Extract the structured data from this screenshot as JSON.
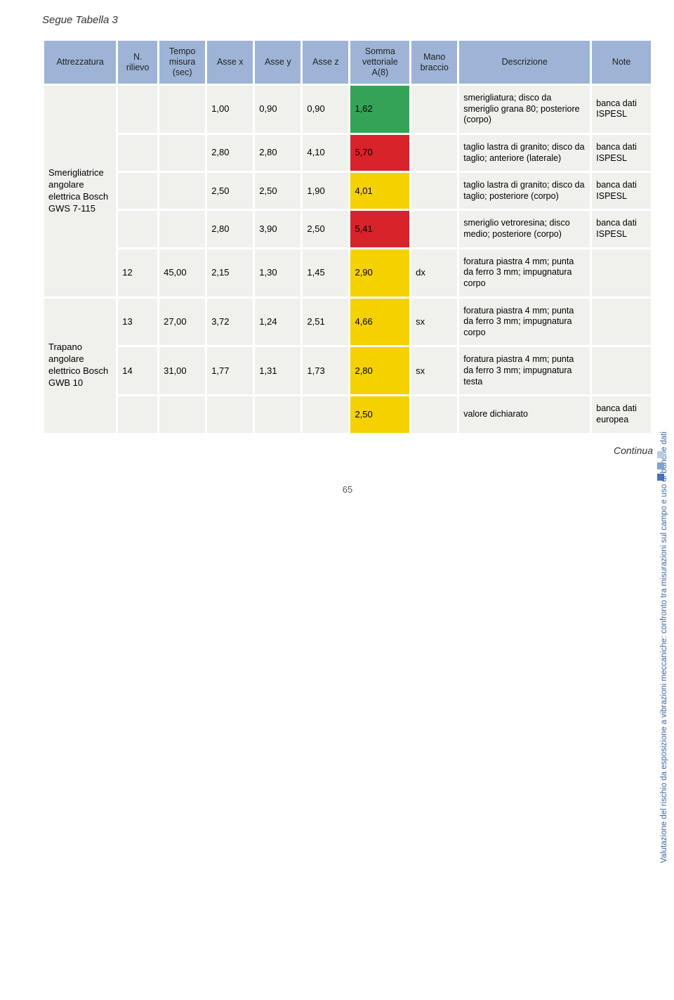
{
  "caption": "Segue Tabella 3",
  "continua_label": "Continua",
  "page_number": "65",
  "side_text": "Valutazione del rischio da esposizione a vibrazioni meccaniche: confronto tra misurazioni sul campo e uso di banche dati",
  "colors": {
    "header_bg": "#9db4d6",
    "cell_bg": "#f0f0ed",
    "green": "#33a457",
    "red": "#d8232a",
    "yellow": "#f5d100",
    "side_text": "#3a66a8",
    "dot1": "#b8cce8",
    "dot2": "#7fa3d4",
    "dot3": "#4472c4"
  },
  "columns": [
    {
      "key": "attrezzatura",
      "label": "Attrezzatura",
      "width": "11%"
    },
    {
      "key": "n_rilievo",
      "label": "N.\nrilievo",
      "width": "6%"
    },
    {
      "key": "tempo",
      "label": "Tempo\nmisura\n(sec)",
      "width": "7%"
    },
    {
      "key": "asse_x",
      "label": "Asse x",
      "width": "7%"
    },
    {
      "key": "asse_y",
      "label": "Asse y",
      "width": "7%"
    },
    {
      "key": "asse_z",
      "label": "Asse z",
      "width": "7%"
    },
    {
      "key": "somma",
      "label": "Somma\nvettoriale\nA(8)",
      "width": "9%"
    },
    {
      "key": "mano",
      "label": "Mano\nbraccio",
      "width": "7%"
    },
    {
      "key": "descrizione",
      "label": "Descrizione",
      "width": "20%"
    },
    {
      "key": "note",
      "label": "Note",
      "width": "9%"
    }
  ],
  "groups": [
    {
      "attrezzatura": "Smerigliatrice angolare elettrica Bosch GWS 7-115",
      "attr_rowspan": 5,
      "rows": [
        {
          "n_rilievo": "",
          "tempo": "",
          "asse_x": "1,00",
          "asse_y": "0,90",
          "asse_z": "0,90",
          "somma": "1,62",
          "somma_color": "green",
          "mano": "",
          "descrizione": "smerigliatura; disco da smeriglio grana 80; posteriore (corpo)",
          "note": "banca dati ISPESL"
        },
        {
          "n_rilievo": "",
          "tempo": "",
          "asse_x": "2,80",
          "asse_y": "2,80",
          "asse_z": "4,10",
          "somma": "5,70",
          "somma_color": "red",
          "mano": "",
          "descrizione": "taglio lastra di granito; disco da taglio; anteriore (laterale)",
          "note": "banca dati ISPESL"
        },
        {
          "n_rilievo": "",
          "tempo": "",
          "asse_x": "2,50",
          "asse_y": "2,50",
          "asse_z": "1,90",
          "somma": "4,01",
          "somma_color": "yellow",
          "mano": "",
          "descrizione": "taglio lastra di granito; disco da taglio; posteriore (corpo)",
          "note": "banca dati ISPESL"
        },
        {
          "n_rilievo": "",
          "tempo": "",
          "asse_x": "2,80",
          "asse_y": "3,90",
          "asse_z": "2,50",
          "somma": "5,41",
          "somma_color": "red",
          "mano": "",
          "descrizione": "smeriglio vetroresina; disco medio; posteriore (corpo)",
          "note": "banca dati ISPESL"
        },
        {
          "n_rilievo": "12",
          "tempo": "45,00",
          "asse_x": "2,15",
          "asse_y": "1,30",
          "asse_z": "1,45",
          "somma": "2,90",
          "somma_color": "yellow",
          "mano": "dx",
          "descrizione": "foratura piastra 4 mm; punta da ferro 3 mm; impugnatura corpo",
          "note": ""
        }
      ]
    },
    {
      "attrezzatura": "Trapano angolare elettrico Bosch GWB 10",
      "attr_rowspan": 3,
      "rows": [
        {
          "n_rilievo": "13",
          "tempo": "27,00",
          "asse_x": "3,72",
          "asse_y": "1,24",
          "asse_z": "2,51",
          "somma": "4,66",
          "somma_color": "yellow",
          "mano": "sx",
          "descrizione": "foratura piastra 4 mm; punta da ferro 3 mm; impugnatura corpo",
          "note": ""
        },
        {
          "n_rilievo": "14",
          "tempo": "31,00",
          "asse_x": "1,77",
          "asse_y": "1,31",
          "asse_z": "1,73",
          "somma": "2,80",
          "somma_color": "yellow",
          "mano": "sx",
          "descrizione": "foratura piastra 4 mm; punta da ferro 3 mm; impugnatura testa",
          "note": ""
        },
        {
          "n_rilievo": "",
          "tempo": "",
          "asse_x": "",
          "asse_y": "",
          "asse_z": "",
          "somma": "2,50",
          "somma_color": "yellow",
          "mano": "",
          "descrizione": "valore dichiarato",
          "note": "banca dati europea"
        }
      ]
    }
  ]
}
